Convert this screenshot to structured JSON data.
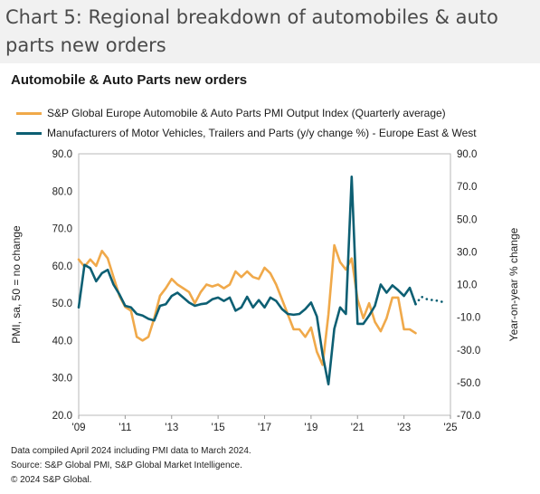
{
  "page": {
    "title": "Chart 5: Regional breakdown of automobiles & auto parts new orders"
  },
  "colors": {
    "pmi": "#F0A94A",
    "manufacturers": "#0D5F73",
    "header_band": "#F1F1F1"
  },
  "chart_data": {
    "type": "line",
    "title": "Automobile & Auto Parts new orders",
    "grid": false,
    "legend_position": "top",
    "x_ticks": [
      "'09",
      "'11",
      "'13",
      "'15",
      "'17",
      "'19",
      "'21",
      "'23",
      "'25"
    ],
    "xlim": [
      2009,
      2025
    ],
    "left_axis": {
      "label": "PMI, sa, 50 = no change",
      "ticks": [
        "20.0",
        "30.0",
        "40.0",
        "50.0",
        "60.0",
        "70.0",
        "80.0",
        "90.0"
      ],
      "ylim": [
        20,
        90
      ]
    },
    "right_axis": {
      "label": "Year-on-year % change",
      "ticks": [
        "-70.0",
        "-50.0",
        "-30.0",
        "-10.0",
        "10.0",
        "30.0",
        "50.0",
        "70.0",
        "90.0"
      ],
      "ylim": [
        -70,
        90
      ]
    },
    "series": [
      {
        "name": "S&P Global Europe Automobile & Auto Parts PMI Output Index (Quarterly average)",
        "axis": "left",
        "color": "#F0A94A",
        "points": [
          [
            2009.0,
            61.7
          ],
          [
            2009.25,
            59.8
          ],
          [
            2009.5,
            61.7
          ],
          [
            2009.75,
            60.0
          ],
          [
            2010.0,
            64.0
          ],
          [
            2010.25,
            62.0
          ],
          [
            2010.5,
            57.0
          ],
          [
            2010.75,
            52.0
          ],
          [
            2011.0,
            49.0
          ],
          [
            2011.25,
            48.0
          ],
          [
            2011.5,
            41.0
          ],
          [
            2011.75,
            40.0
          ],
          [
            2012.0,
            41.0
          ],
          [
            2012.25,
            46.0
          ],
          [
            2012.5,
            52.0
          ],
          [
            2012.75,
            54.0
          ],
          [
            2013.0,
            56.5
          ],
          [
            2013.25,
            55.0
          ],
          [
            2013.5,
            54.0
          ],
          [
            2013.75,
            53.0
          ],
          [
            2014.0,
            50.0
          ],
          [
            2014.25,
            53.0
          ],
          [
            2014.5,
            55.0
          ],
          [
            2014.75,
            54.5
          ],
          [
            2015.0,
            55.0
          ],
          [
            2015.25,
            54.0
          ],
          [
            2015.5,
            55.0
          ],
          [
            2015.75,
            58.5
          ],
          [
            2016.0,
            57.0
          ],
          [
            2016.25,
            58.5
          ],
          [
            2016.5,
            57.0
          ],
          [
            2016.75,
            56.5
          ],
          [
            2017.0,
            59.5
          ],
          [
            2017.25,
            58.0
          ],
          [
            2017.5,
            55.0
          ],
          [
            2017.75,
            51.0
          ],
          [
            2018.0,
            47.0
          ],
          [
            2018.25,
            43.0
          ],
          [
            2018.5,
            43.0
          ],
          [
            2018.75,
            41.0
          ],
          [
            2019.0,
            43.5
          ],
          [
            2019.25,
            37.0
          ],
          [
            2019.5,
            33.5
          ],
          [
            2019.75,
            47.0
          ],
          [
            2020.0,
            65.5
          ],
          [
            2020.25,
            61.0
          ],
          [
            2020.5,
            59.0
          ],
          [
            2020.75,
            62.0
          ],
          [
            2021.0,
            51.0
          ],
          [
            2021.25,
            46.0
          ],
          [
            2021.5,
            50.0
          ],
          [
            2021.75,
            45.0
          ],
          [
            2022.0,
            42.5
          ],
          [
            2022.25,
            46.0
          ],
          [
            2022.5,
            51.5
          ],
          [
            2022.75,
            51.5
          ],
          [
            2023.0,
            43.0
          ],
          [
            2023.25,
            43.0
          ],
          [
            2023.5,
            42.0
          ]
        ]
      },
      {
        "name": "Manufacturers of Motor Vehicles, Trailers and Parts (y/y change %) - Europe East & West",
        "axis": "right",
        "color": "#0D5F73",
        "points": [
          [
            2009.0,
            -4.0
          ],
          [
            2009.25,
            22.0
          ],
          [
            2009.5,
            20.0
          ],
          [
            2009.75,
            12.0
          ],
          [
            2010.0,
            17.0
          ],
          [
            2010.25,
            19.0
          ],
          [
            2010.5,
            10.0
          ],
          [
            2010.75,
            4.0
          ],
          [
            2011.0,
            -3.0
          ],
          [
            2011.25,
            -4.0
          ],
          [
            2011.5,
            -8.0
          ],
          [
            2011.75,
            -9.0
          ],
          [
            2012.0,
            -11.0
          ],
          [
            2012.25,
            -12.0
          ],
          [
            2012.5,
            -3.0
          ],
          [
            2012.75,
            -2.0
          ],
          [
            2013.0,
            3.0
          ],
          [
            2013.25,
            5.0
          ],
          [
            2013.5,
            2.0
          ],
          [
            2013.75,
            -1.0
          ],
          [
            2014.0,
            -3.0
          ],
          [
            2014.25,
            -2.0
          ],
          [
            2014.5,
            -1.5
          ],
          [
            2014.75,
            1.0
          ],
          [
            2015.0,
            2.0
          ],
          [
            2015.25,
            0.0
          ],
          [
            2015.5,
            2.0
          ],
          [
            2015.75,
            -6.0
          ],
          [
            2016.0,
            -4.0
          ],
          [
            2016.25,
            2.5
          ],
          [
            2016.5,
            -4.0
          ],
          [
            2016.75,
            0.5
          ],
          [
            2017.0,
            -4.0
          ],
          [
            2017.25,
            2.0
          ],
          [
            2017.5,
            0.0
          ],
          [
            2017.75,
            -5.0
          ],
          [
            2018.0,
            -8.0
          ],
          [
            2018.25,
            -8.5
          ],
          [
            2018.5,
            -8.0
          ],
          [
            2018.75,
            -5.0
          ],
          [
            2019.0,
            -1.0
          ],
          [
            2019.25,
            -9.5
          ],
          [
            2019.5,
            -33.0
          ],
          [
            2019.75,
            -51.0
          ],
          [
            2020.0,
            -17.0
          ],
          [
            2020.25,
            -4.0
          ],
          [
            2020.5,
            -8.0
          ],
          [
            2020.75,
            76.0
          ],
          [
            2021.0,
            -14.0
          ],
          [
            2021.25,
            -14.0
          ],
          [
            2021.5,
            -9.0
          ],
          [
            2021.75,
            -3.0
          ],
          [
            2022.0,
            10.0
          ],
          [
            2022.25,
            5.0
          ],
          [
            2022.5,
            9.5
          ],
          [
            2022.75,
            6.5
          ],
          [
            2023.0,
            3.0
          ],
          [
            2023.25,
            8.0
          ],
          [
            2023.5,
            -2.0
          ]
        ],
        "forecast_points": [
          [
            2023.5,
            -2.0
          ],
          [
            2023.75,
            2.5
          ],
          [
            2024.0,
            1.0
          ],
          [
            2024.25,
            0.5
          ],
          [
            2024.5,
            0.0
          ],
          [
            2024.75,
            -1.0
          ]
        ]
      }
    ]
  },
  "footnote": {
    "line1": "Data compiled April 2024 including PMI data to March 2024.",
    "line2": "Source: S&P Global PMI, S&P Global Market Intelligence.",
    "line3": "© 2024 S&P Global."
  }
}
